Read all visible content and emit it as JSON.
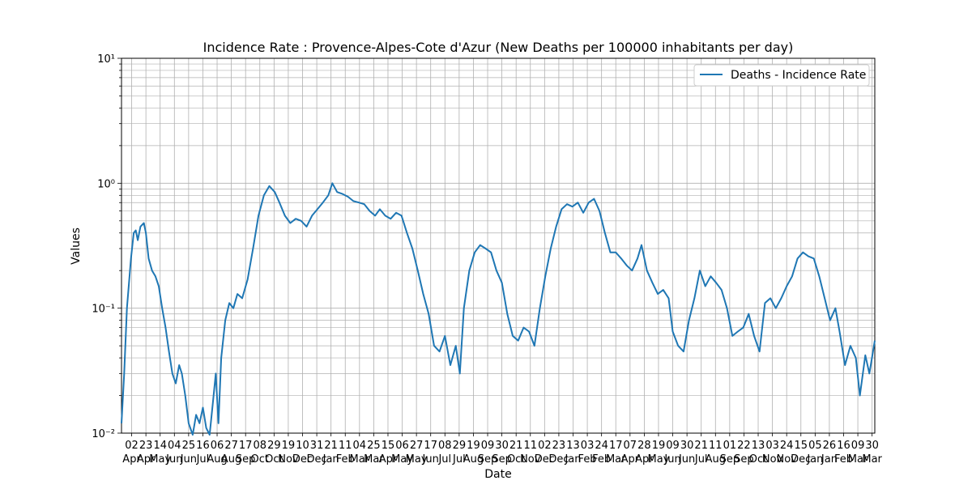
{
  "chart_data": {
    "type": "line",
    "title": "Incidence Rate : Provence-Alpes-Cote d'Azur  (New Deaths per 100000 inhabitants per day)",
    "xlabel": "Date",
    "ylabel": "Values",
    "yscale": "log",
    "ylim": [
      0.01,
      10
    ],
    "y_tick_labels": [
      "10⁻²",
      "10⁻¹",
      "10⁰",
      "10¹"
    ],
    "grid": true,
    "legend_position": "top-right",
    "line_color": "#1f77b4",
    "x_tick_labels": [
      {
        "day": "02",
        "month": "Apr"
      },
      {
        "day": "23",
        "month": "Apr"
      },
      {
        "day": "14",
        "month": "May"
      },
      {
        "day": "04",
        "month": "Jun"
      },
      {
        "day": "25",
        "month": "Jun"
      },
      {
        "day": "16",
        "month": "Jul"
      },
      {
        "day": "06",
        "month": "Aug"
      },
      {
        "day": "27",
        "month": "Aug"
      },
      {
        "day": "17",
        "month": "Sep"
      },
      {
        "day": "08",
        "month": "Oct"
      },
      {
        "day": "29",
        "month": "Oct"
      },
      {
        "day": "19",
        "month": "Nov"
      },
      {
        "day": "10",
        "month": "Dec"
      },
      {
        "day": "31",
        "month": "Dec"
      },
      {
        "day": "21",
        "month": "Jan"
      },
      {
        "day": "11",
        "month": "Feb"
      },
      {
        "day": "04",
        "month": "Mar"
      },
      {
        "day": "25",
        "month": "Mar"
      },
      {
        "day": "15",
        "month": "Apr"
      },
      {
        "day": "06",
        "month": "May"
      },
      {
        "day": "27",
        "month": "May"
      },
      {
        "day": "17",
        "month": "Jun"
      },
      {
        "day": "08",
        "month": "Jul"
      },
      {
        "day": "29",
        "month": "Jul"
      },
      {
        "day": "19",
        "month": "Aug"
      },
      {
        "day": "09",
        "month": "Sep"
      },
      {
        "day": "30",
        "month": "Sep"
      },
      {
        "day": "21",
        "month": "Oct"
      },
      {
        "day": "11",
        "month": "Nov"
      },
      {
        "day": "02",
        "month": "Dec"
      },
      {
        "day": "23",
        "month": "Dec"
      },
      {
        "day": "13",
        "month": "Jan"
      },
      {
        "day": "03",
        "month": "Feb"
      },
      {
        "day": "24",
        "month": "Feb"
      },
      {
        "day": "17",
        "month": "Mar"
      },
      {
        "day": "07",
        "month": "Apr"
      },
      {
        "day": "28",
        "month": "Apr"
      },
      {
        "day": "19",
        "month": "May"
      },
      {
        "day": "09",
        "month": "Jun"
      },
      {
        "day": "30",
        "month": "Jun"
      },
      {
        "day": "21",
        "month": "Jul"
      },
      {
        "day": "11",
        "month": "Aug"
      },
      {
        "day": "01",
        "month": "Sep"
      },
      {
        "day": "22",
        "month": "Sep"
      },
      {
        "day": "13",
        "month": "Oct"
      },
      {
        "day": "03",
        "month": "Nov"
      },
      {
        "day": "24",
        "month": "Nov"
      },
      {
        "day": "15",
        "month": "Dec"
      },
      {
        "day": "05",
        "month": "Jan"
      },
      {
        "day": "26",
        "month": "Jan"
      },
      {
        "day": "16",
        "month": "Feb"
      },
      {
        "day": "09",
        "month": "Mar"
      },
      {
        "day": "30",
        "month": "Mar"
      }
    ],
    "series": [
      {
        "name": "Deaths - Incidence Rate",
        "points": [
          [
            "2020-03-18",
            0.012
          ],
          [
            "2020-03-22",
            0.03
          ],
          [
            "2020-03-26",
            0.1
          ],
          [
            "2020-04-01",
            0.25
          ],
          [
            "2020-04-05",
            0.4
          ],
          [
            "2020-04-08",
            0.42
          ],
          [
            "2020-04-11",
            0.35
          ],
          [
            "2020-04-15",
            0.45
          ],
          [
            "2020-04-20",
            0.48
          ],
          [
            "2020-04-23",
            0.4
          ],
          [
            "2020-04-27",
            0.25
          ],
          [
            "2020-05-02",
            0.2
          ],
          [
            "2020-05-07",
            0.18
          ],
          [
            "2020-05-12",
            0.15
          ],
          [
            "2020-05-17",
            0.1
          ],
          [
            "2020-05-22",
            0.07
          ],
          [
            "2020-05-27",
            0.045
          ],
          [
            "2020-06-01",
            0.03
          ],
          [
            "2020-06-06",
            0.025
          ],
          [
            "2020-06-11",
            0.035
          ],
          [
            "2020-06-15",
            0.03
          ],
          [
            "2020-06-20",
            0.02
          ],
          [
            "2020-06-25",
            0.012
          ],
          [
            "2020-07-01",
            0.009
          ],
          [
            "2020-07-06",
            0.014
          ],
          [
            "2020-07-11",
            0.012
          ],
          [
            "2020-07-16",
            0.016
          ],
          [
            "2020-07-21",
            0.011
          ],
          [
            "2020-07-26",
            0.009
          ],
          [
            "2020-07-31",
            0.018
          ],
          [
            "2020-08-04",
            0.03
          ],
          [
            "2020-08-08",
            0.012
          ],
          [
            "2020-08-12",
            0.04
          ],
          [
            "2020-08-18",
            0.08
          ],
          [
            "2020-08-24",
            0.11
          ],
          [
            "2020-08-30",
            0.1
          ],
          [
            "2020-09-05",
            0.13
          ],
          [
            "2020-09-12",
            0.12
          ],
          [
            "2020-09-20",
            0.17
          ],
          [
            "2020-09-28",
            0.3
          ],
          [
            "2020-10-06",
            0.55
          ],
          [
            "2020-10-14",
            0.8
          ],
          [
            "2020-10-22",
            0.95
          ],
          [
            "2020-10-30",
            0.85
          ],
          [
            "2020-11-06",
            0.7
          ],
          [
            "2020-11-14",
            0.55
          ],
          [
            "2020-11-22",
            0.48
          ],
          [
            "2020-11-30",
            0.52
          ],
          [
            "2020-12-08",
            0.5
          ],
          [
            "2020-12-16",
            0.45
          ],
          [
            "2020-12-24",
            0.55
          ],
          [
            "2021-01-01",
            0.62
          ],
          [
            "2021-01-09",
            0.7
          ],
          [
            "2021-01-17",
            0.8
          ],
          [
            "2021-01-23",
            1.0
          ],
          [
            "2021-01-30",
            0.85
          ],
          [
            "2021-02-07",
            0.82
          ],
          [
            "2021-02-15",
            0.78
          ],
          [
            "2021-02-23",
            0.72
          ],
          [
            "2021-03-03",
            0.7
          ],
          [
            "2021-03-11",
            0.68
          ],
          [
            "2021-03-19",
            0.6
          ],
          [
            "2021-03-27",
            0.55
          ],
          [
            "2021-04-03",
            0.62
          ],
          [
            "2021-04-11",
            0.55
          ],
          [
            "2021-04-19",
            0.52
          ],
          [
            "2021-04-27",
            0.58
          ],
          [
            "2021-05-05",
            0.55
          ],
          [
            "2021-05-13",
            0.4
          ],
          [
            "2021-05-21",
            0.3
          ],
          [
            "2021-05-29",
            0.2
          ],
          [
            "2021-06-06",
            0.13
          ],
          [
            "2021-06-14",
            0.09
          ],
          [
            "2021-06-22",
            0.05
          ],
          [
            "2021-06-30",
            0.045
          ],
          [
            "2021-07-08",
            0.06
          ],
          [
            "2021-07-16",
            0.035
          ],
          [
            "2021-07-24",
            0.05
          ],
          [
            "2021-07-30",
            0.03
          ],
          [
            "2021-08-05",
            0.1
          ],
          [
            "2021-08-13",
            0.2
          ],
          [
            "2021-08-21",
            0.28
          ],
          [
            "2021-08-29",
            0.32
          ],
          [
            "2021-09-06",
            0.3
          ],
          [
            "2021-09-14",
            0.28
          ],
          [
            "2021-09-22",
            0.2
          ],
          [
            "2021-09-30",
            0.16
          ],
          [
            "2021-10-08",
            0.09
          ],
          [
            "2021-10-16",
            0.06
          ],
          [
            "2021-10-24",
            0.055
          ],
          [
            "2021-11-01",
            0.07
          ],
          [
            "2021-11-09",
            0.065
          ],
          [
            "2021-11-17",
            0.05
          ],
          [
            "2021-11-25",
            0.1
          ],
          [
            "2021-12-03",
            0.18
          ],
          [
            "2021-12-11",
            0.3
          ],
          [
            "2021-12-19",
            0.45
          ],
          [
            "2021-12-27",
            0.62
          ],
          [
            "2022-01-04",
            0.68
          ],
          [
            "2022-01-12",
            0.65
          ],
          [
            "2022-01-20",
            0.7
          ],
          [
            "2022-01-28",
            0.58
          ],
          [
            "2022-02-05",
            0.7
          ],
          [
            "2022-02-13",
            0.75
          ],
          [
            "2022-02-21",
            0.6
          ],
          [
            "2022-03-01",
            0.4
          ],
          [
            "2022-03-09",
            0.28
          ],
          [
            "2022-03-17",
            0.28
          ],
          [
            "2022-03-25",
            0.25
          ],
          [
            "2022-04-02",
            0.22
          ],
          [
            "2022-04-10",
            0.2
          ],
          [
            "2022-04-18",
            0.25
          ],
          [
            "2022-04-24",
            0.32
          ],
          [
            "2022-05-02",
            0.2
          ],
          [
            "2022-05-10",
            0.16
          ],
          [
            "2022-05-18",
            0.13
          ],
          [
            "2022-05-26",
            0.14
          ],
          [
            "2022-06-03",
            0.12
          ],
          [
            "2022-06-09",
            0.065
          ],
          [
            "2022-06-17",
            0.05
          ],
          [
            "2022-06-25",
            0.045
          ],
          [
            "2022-07-03",
            0.08
          ],
          [
            "2022-07-11",
            0.12
          ],
          [
            "2022-07-19",
            0.2
          ],
          [
            "2022-07-27",
            0.15
          ],
          [
            "2022-08-04",
            0.18
          ],
          [
            "2022-08-12",
            0.16
          ],
          [
            "2022-08-20",
            0.14
          ],
          [
            "2022-08-28",
            0.1
          ],
          [
            "2022-09-05",
            0.06
          ],
          [
            "2022-09-13",
            0.065
          ],
          [
            "2022-09-21",
            0.07
          ],
          [
            "2022-09-29",
            0.09
          ],
          [
            "2022-10-07",
            0.06
          ],
          [
            "2022-10-15",
            0.045
          ],
          [
            "2022-10-23",
            0.11
          ],
          [
            "2022-10-31",
            0.12
          ],
          [
            "2022-11-08",
            0.1
          ],
          [
            "2022-11-16",
            0.12
          ],
          [
            "2022-11-24",
            0.15
          ],
          [
            "2022-12-02",
            0.18
          ],
          [
            "2022-12-10",
            0.25
          ],
          [
            "2022-12-18",
            0.28
          ],
          [
            "2022-12-26",
            0.26
          ],
          [
            "2023-01-03",
            0.25
          ],
          [
            "2023-01-11",
            0.18
          ],
          [
            "2023-01-19",
            0.12
          ],
          [
            "2023-01-27",
            0.08
          ],
          [
            "2023-02-04",
            0.1
          ],
          [
            "2023-02-10",
            0.065
          ],
          [
            "2023-02-18",
            0.035
          ],
          [
            "2023-02-26",
            0.05
          ],
          [
            "2023-03-06",
            0.04
          ],
          [
            "2023-03-12",
            0.02
          ],
          [
            "2023-03-20",
            0.042
          ],
          [
            "2023-03-26",
            0.03
          ],
          [
            "2023-04-03",
            0.055
          ]
        ]
      }
    ]
  }
}
